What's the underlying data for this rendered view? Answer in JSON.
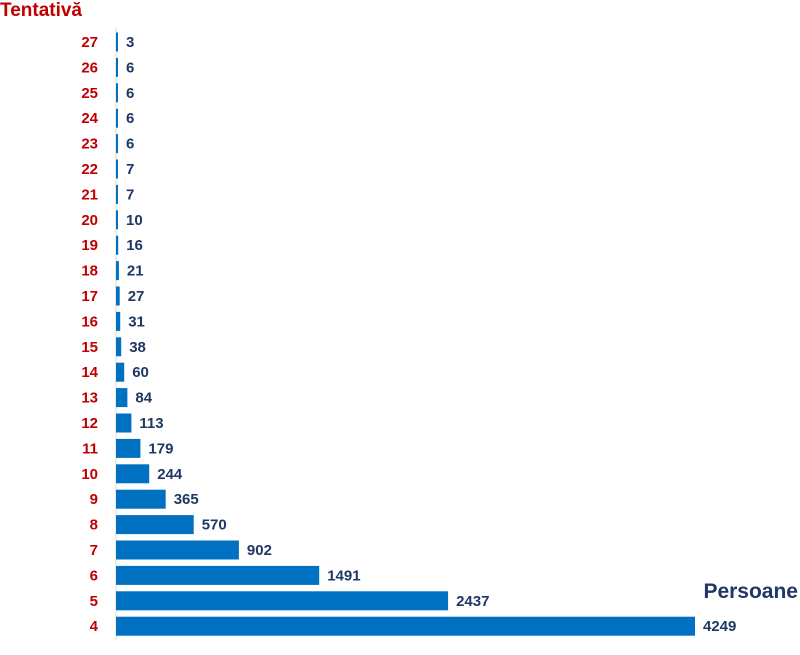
{
  "chart_data": {
    "type": "bar",
    "orientation": "horizontal",
    "ylabel": "Tentativă",
    "xlabel": "Persoane",
    "categories": [
      "27",
      "26",
      "25",
      "24",
      "23",
      "22",
      "21",
      "20",
      "19",
      "18",
      "17",
      "16",
      "15",
      "14",
      "13",
      "12",
      "11",
      "10",
      "9",
      "8",
      "7",
      "6",
      "5",
      "4"
    ],
    "values": [
      3,
      6,
      6,
      6,
      6,
      7,
      7,
      10,
      16,
      21,
      27,
      31,
      38,
      60,
      84,
      113,
      179,
      244,
      365,
      570,
      902,
      1491,
      2437,
      4249
    ],
    "xlim": [
      0,
      4249
    ],
    "grid": false,
    "legend": "none",
    "colors": {
      "bar": "#0070c0",
      "category_label": "#c00000",
      "value_label": "#1f3864"
    }
  }
}
